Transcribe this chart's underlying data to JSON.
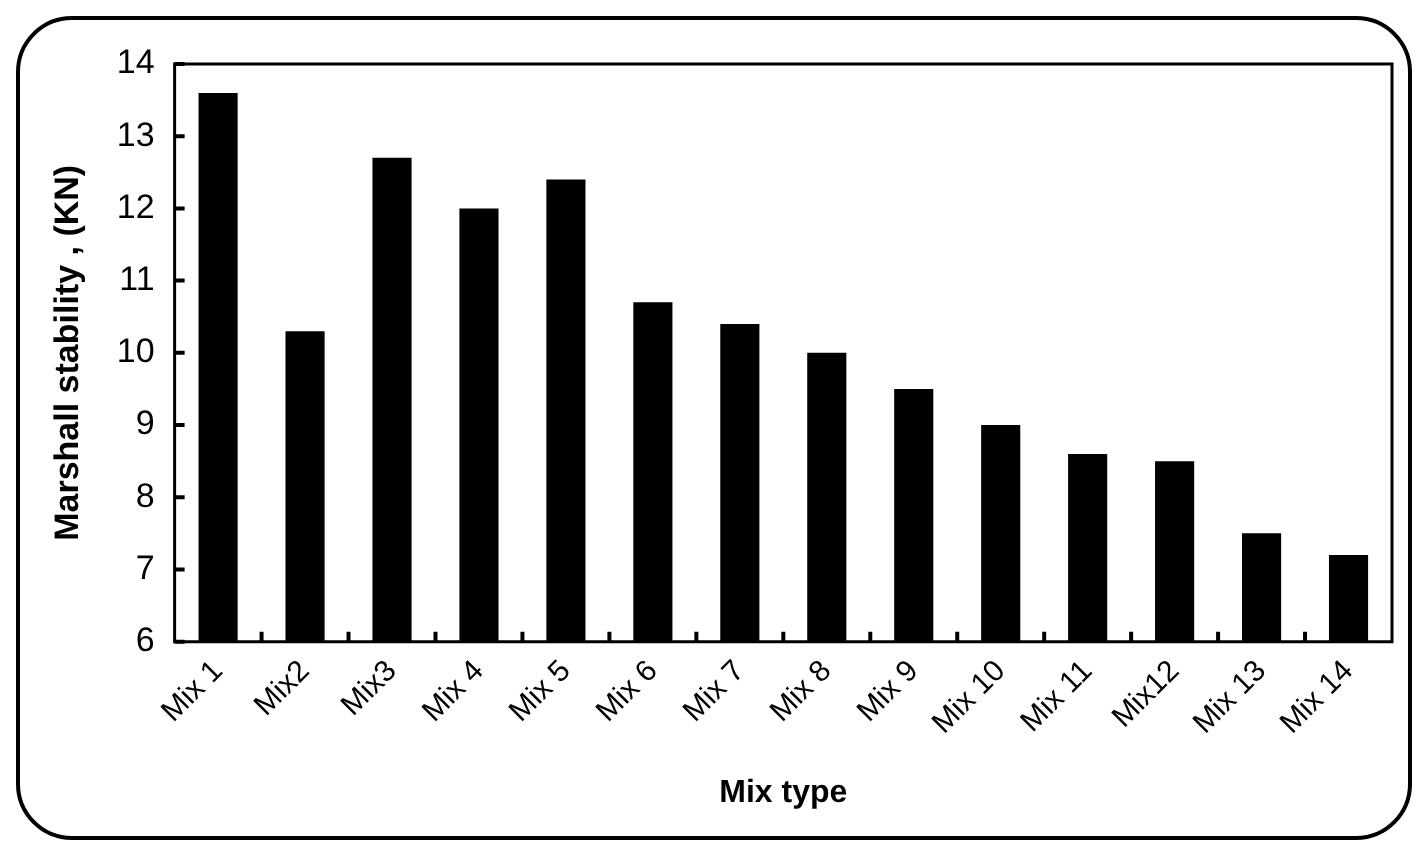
{
  "chart_data": {
    "type": "bar",
    "xlabel": "Mix type",
    "ylabel": "Marshall stability , (KN)",
    "categories": [
      "Mix 1",
      "Mix2",
      "Mix3",
      "Mix 4",
      "Mix 5",
      "Mix 6",
      "Mix 7",
      "Mix 8",
      "Mix 9",
      "Mix 10",
      "Mix 11",
      "Mix12",
      "Mix 13",
      "Mix 14"
    ],
    "values": [
      13.6,
      10.3,
      12.7,
      12.0,
      12.4,
      10.7,
      10.4,
      10.0,
      9.5,
      9.0,
      8.6,
      8.5,
      7.5,
      7.2
    ],
    "color": "#000000",
    "ylim": [
      6,
      14
    ],
    "yticks": [
      6,
      7,
      8,
      9,
      10,
      11,
      12,
      13,
      14
    ],
    "grid": false,
    "legend": false
  }
}
